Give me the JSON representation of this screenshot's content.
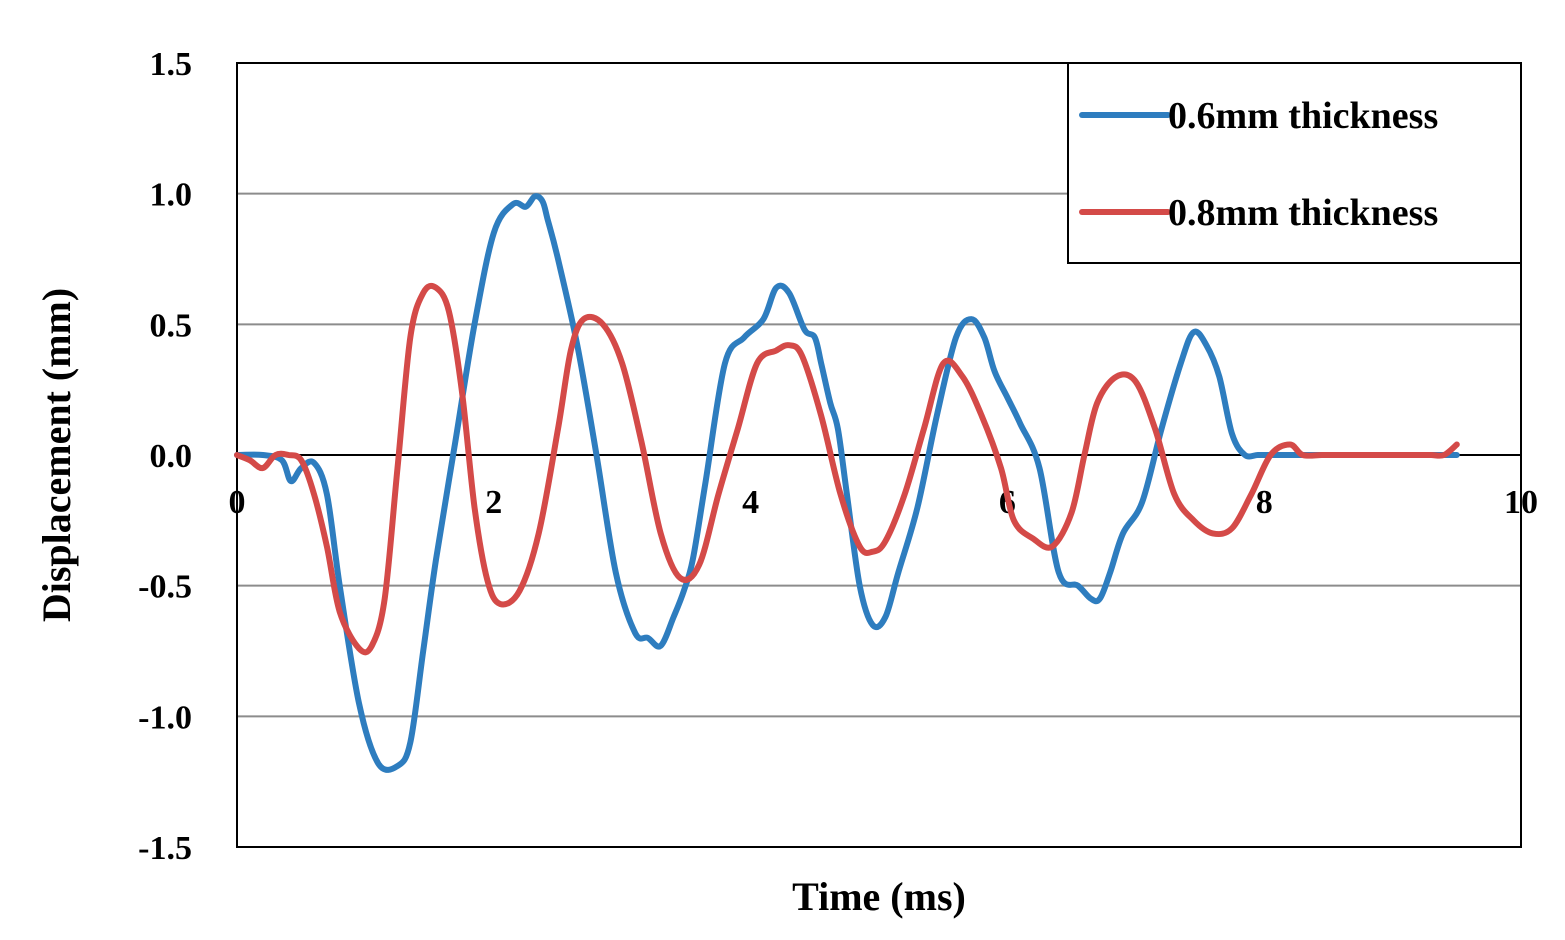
{
  "chart_data": {
    "type": "line",
    "xlabel": "Time (ms)",
    "ylabel": "Displacement (mm)",
    "xlim": [
      0,
      10
    ],
    "ylim": [
      -1.5,
      1.5
    ],
    "x_ticks": [
      "0",
      "2",
      "4",
      "6",
      "8",
      "10"
    ],
    "y_ticks": [
      "1.5",
      "1.0",
      "0.5",
      "0.0",
      "-0.5",
      "-1.0",
      "-1.5"
    ],
    "grid": "horizontal",
    "legend_position": "top-right",
    "series": [
      {
        "name": "0.6mm thickness",
        "color": "#2e7dbf",
        "x": [
          0.0,
          0.2,
          0.35,
          0.42,
          0.5,
          0.6,
          0.7,
          0.8,
          0.95,
          1.1,
          1.25,
          1.35,
          1.45,
          1.55,
          1.7,
          1.85,
          2.0,
          2.15,
          2.25,
          2.32,
          2.38,
          2.42,
          2.5,
          2.65,
          2.8,
          2.95,
          3.1,
          3.2,
          3.3,
          3.4,
          3.48,
          3.55,
          3.65,
          3.8,
          3.95,
          4.1,
          4.2,
          4.3,
          4.42,
          4.5,
          4.55,
          4.62,
          4.68,
          4.75,
          4.85,
          4.95,
          5.05,
          5.15,
          5.3,
          5.45,
          5.6,
          5.72,
          5.82,
          5.9,
          6.0,
          6.1,
          6.25,
          6.4,
          6.55,
          6.65,
          6.72,
          6.8,
          6.9,
          7.05,
          7.2,
          7.35,
          7.45,
          7.55,
          7.65,
          7.75,
          7.85,
          7.95,
          8.05,
          8.15,
          8.3,
          8.45,
          8.6,
          8.75,
          8.9,
          9.0,
          9.1,
          9.2,
          9.3,
          9.4,
          9.5
        ],
        "y": [
          0.0,
          0.0,
          -0.02,
          -0.1,
          -0.05,
          -0.03,
          -0.15,
          -0.5,
          -0.95,
          -1.18,
          -1.19,
          -1.1,
          -0.75,
          -0.4,
          0.05,
          0.5,
          0.85,
          0.96,
          0.95,
          0.99,
          0.97,
          0.9,
          0.75,
          0.42,
          0.0,
          -0.45,
          -0.68,
          -0.7,
          -0.73,
          -0.62,
          -0.52,
          -0.4,
          -0.1,
          0.35,
          0.45,
          0.52,
          0.64,
          0.62,
          0.48,
          0.45,
          0.35,
          0.2,
          0.1,
          -0.15,
          -0.5,
          -0.65,
          -0.62,
          -0.45,
          -0.2,
          0.15,
          0.45,
          0.52,
          0.45,
          0.32,
          0.22,
          0.12,
          -0.05,
          -0.45,
          -0.5,
          -0.55,
          -0.55,
          -0.45,
          -0.3,
          -0.18,
          0.1,
          0.35,
          0.47,
          0.42,
          0.3,
          0.08,
          0.0,
          0.0,
          0.0,
          0.0,
          0.0,
          0.0,
          0.0,
          0.0,
          0.0,
          0.0,
          0.0,
          0.0,
          0.0,
          0.0,
          0.0
        ]
      },
      {
        "name": "0.8mm thickness",
        "color": "#d44a48",
        "x": [
          0.0,
          0.1,
          0.2,
          0.3,
          0.4,
          0.5,
          0.6,
          0.7,
          0.8,
          0.95,
          1.05,
          1.15,
          1.25,
          1.35,
          1.45,
          1.55,
          1.65,
          1.75,
          1.85,
          1.95,
          2.05,
          2.2,
          2.35,
          2.5,
          2.6,
          2.7,
          2.85,
          3.0,
          3.15,
          3.3,
          3.45,
          3.6,
          3.75,
          3.9,
          4.05,
          4.2,
          4.3,
          4.4,
          4.55,
          4.7,
          4.85,
          4.95,
          5.05,
          5.2,
          5.35,
          5.5,
          5.65,
          5.8,
          5.95,
          6.05,
          6.2,
          6.35,
          6.5,
          6.6,
          6.7,
          6.85,
          7.0,
          7.15,
          7.3,
          7.45,
          7.6,
          7.75,
          7.9,
          8.05,
          8.2,
          8.3,
          8.45,
          8.6,
          8.75,
          8.9,
          9.0,
          9.1,
          9.2,
          9.3,
          9.4,
          9.5
        ],
        "y": [
          0.0,
          -0.02,
          -0.05,
          0.0,
          0.0,
          -0.02,
          -0.15,
          -0.35,
          -0.6,
          -0.74,
          -0.73,
          -0.55,
          -0.05,
          0.45,
          0.62,
          0.64,
          0.55,
          0.25,
          -0.2,
          -0.48,
          -0.57,
          -0.52,
          -0.3,
          0.1,
          0.4,
          0.52,
          0.5,
          0.35,
          0.05,
          -0.3,
          -0.47,
          -0.42,
          -0.15,
          0.1,
          0.35,
          0.4,
          0.42,
          0.38,
          0.15,
          -0.15,
          -0.35,
          -0.37,
          -0.33,
          -0.15,
          0.1,
          0.35,
          0.3,
          0.15,
          -0.05,
          -0.25,
          -0.32,
          -0.35,
          -0.22,
          0.0,
          0.2,
          0.3,
          0.28,
          0.1,
          -0.15,
          -0.25,
          -0.3,
          -0.28,
          -0.15,
          0.0,
          0.04,
          0.0,
          0.0,
          0.0,
          0.0,
          0.0,
          0.0,
          0.0,
          0.0,
          0.0,
          0.0,
          0.04
        ]
      }
    ]
  }
}
